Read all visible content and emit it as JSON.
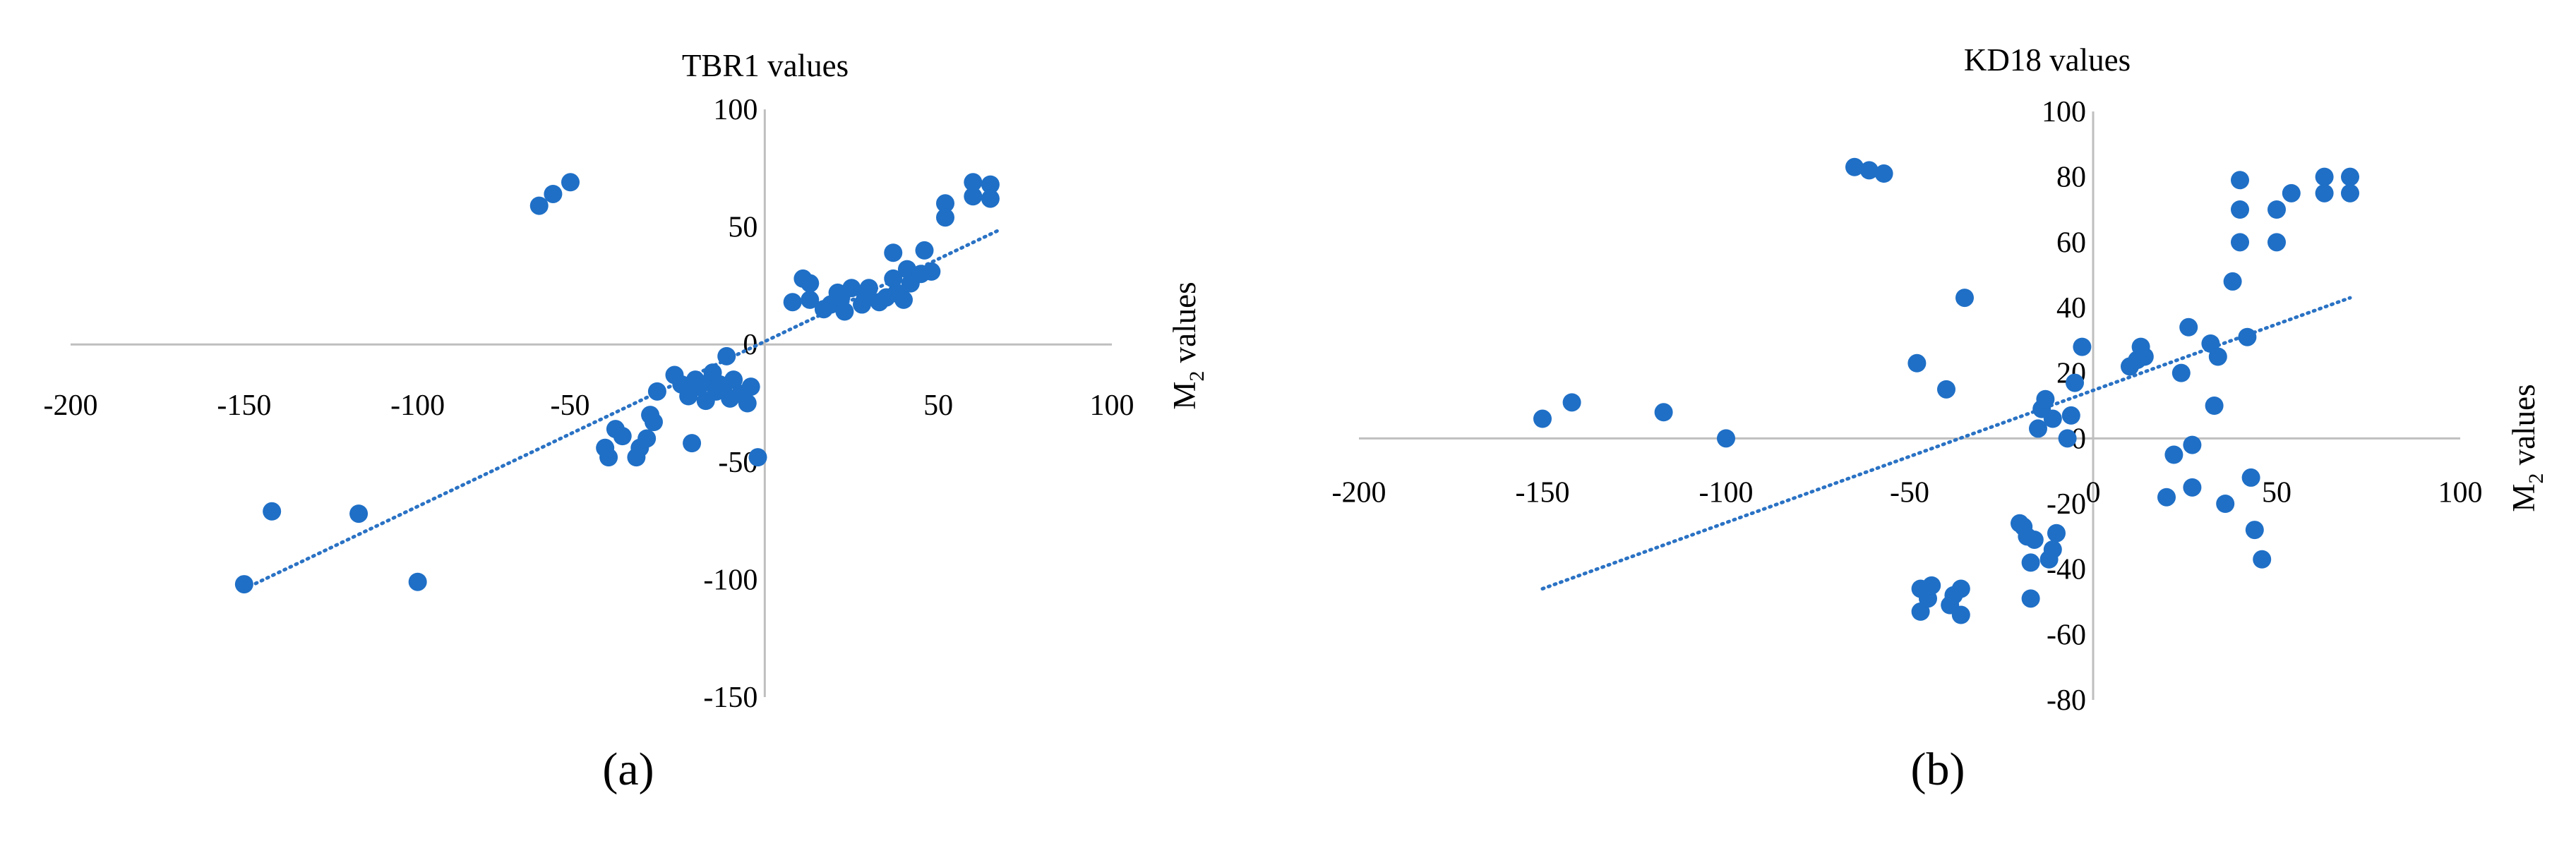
{
  "figure": {
    "panel_labels": [
      "(a)",
      "(b)"
    ],
    "colors": {
      "marker": "#1f6fc6",
      "axis": "#bfbfbf",
      "trendline": "#2a72c4"
    }
  },
  "chart_data": [
    {
      "type": "scatter",
      "title": "TBR1 values",
      "xlabel": "",
      "ylabel": "M2 values",
      "ylabel_main": "M",
      "ylabel_sub": "2",
      "ylabel_rest": " values",
      "xlim": [
        -200,
        100
      ],
      "ylim": [
        -150,
        100
      ],
      "xticks": [
        -200,
        -150,
        -100,
        50,
        100
      ],
      "xtick_labels": [
        "-200",
        "-150",
        "-100",
        "50",
        "100"
      ],
      "xtick_inline": [
        {
          "x": -50,
          "label": "-50"
        }
      ],
      "yticks": [
        -150,
        -100,
        -50,
        0,
        50,
        100
      ],
      "ytick_labels": [
        "-150",
        "-100",
        "-50",
        "0",
        "50",
        "100"
      ],
      "grid": false,
      "legend": "none",
      "trendline": {
        "style": "dotted linear",
        "x": [
          -150,
          68
        ],
        "y": [
          -104,
          49
        ]
      },
      "points": [
        [
          -150,
          -102
        ],
        [
          -142,
          -71
        ],
        [
          -117,
          -72
        ],
        [
          -100,
          -101
        ],
        [
          -65,
          59
        ],
        [
          -61,
          64
        ],
        [
          -56,
          69
        ],
        [
          -46,
          -44
        ],
        [
          -45,
          -48
        ],
        [
          -43,
          -36
        ],
        [
          -41,
          -39
        ],
        [
          -37,
          -48
        ],
        [
          -36,
          -44
        ],
        [
          -34,
          -40
        ],
        [
          -33,
          -30
        ],
        [
          -32,
          -33
        ],
        [
          -31,
          -20
        ],
        [
          -26,
          -13
        ],
        [
          -24,
          -17
        ],
        [
          -22,
          -22
        ],
        [
          -21,
          -42
        ],
        [
          -20,
          -15
        ],
        [
          -19,
          -18
        ],
        [
          -17,
          -24
        ],
        [
          -16,
          -16
        ],
        [
          -15,
          -12
        ],
        [
          -14,
          -20
        ],
        [
          -13,
          -17
        ],
        [
          -12,
          -19
        ],
        [
          -11,
          -5
        ],
        [
          -10,
          -23
        ],
        [
          -9,
          -15
        ],
        [
          -7,
          -21
        ],
        [
          -5,
          -25
        ],
        [
          -4,
          -18
        ],
        [
          -2,
          -48
        ],
        [
          8,
          18
        ],
        [
          11,
          28
        ],
        [
          13,
          26
        ],
        [
          13,
          19
        ],
        [
          17,
          15
        ],
        [
          19,
          17
        ],
        [
          21,
          22
        ],
        [
          22,
          20
        ],
        [
          23,
          14
        ],
        [
          25,
          24
        ],
        [
          28,
          17
        ],
        [
          29,
          20
        ],
        [
          30,
          24
        ],
        [
          33,
          18
        ],
        [
          35,
          20
        ],
        [
          37,
          39
        ],
        [
          37,
          28
        ],
        [
          38,
          22
        ],
        [
          39,
          21
        ],
        [
          40,
          19
        ],
        [
          41,
          32
        ],
        [
          42,
          26
        ],
        [
          45,
          30
        ],
        [
          46,
          40
        ],
        [
          48,
          31
        ],
        [
          52,
          60
        ],
        [
          52,
          54
        ],
        [
          60,
          69
        ],
        [
          60,
          63
        ],
        [
          65,
          68
        ],
        [
          65,
          62
        ]
      ]
    },
    {
      "type": "scatter",
      "title": "KD18 values",
      "xlabel": "",
      "ylabel": "M2 values",
      "ylabel_main": "M",
      "ylabel_sub": "2",
      "ylabel_rest": " values",
      "xlim": [
        -200,
        100
      ],
      "ylim": [
        -80,
        100
      ],
      "xticks": [
        -200,
        -150,
        -100,
        -50,
        50,
        100
      ],
      "xtick_labels": [
        "-200",
        "-150",
        "-100",
        "-50",
        "50",
        "100"
      ],
      "xtick_inline": [
        {
          "x": 0,
          "label": "0"
        }
      ],
      "yticks": [
        -80,
        -60,
        -40,
        -20,
        0,
        20,
        40,
        60,
        80,
        100
      ],
      "ytick_labels": [
        "-80",
        "-60",
        "-40",
        "-20",
        "0",
        "20",
        "40",
        "60",
        "80",
        "100"
      ],
      "grid": false,
      "legend": "none",
      "trendline": {
        "style": "dotted linear",
        "x": [
          -150,
          70
        ],
        "y": [
          -46,
          43
        ]
      },
      "points": [
        [
          -150,
          6
        ],
        [
          -142,
          11
        ],
        [
          -117,
          8
        ],
        [
          -100,
          0
        ],
        [
          -65,
          83
        ],
        [
          -61,
          82
        ],
        [
          -57,
          81
        ],
        [
          -48,
          23
        ],
        [
          -47,
          -46
        ],
        [
          -47,
          -53
        ],
        [
          -45,
          -49
        ],
        [
          -44,
          -45
        ],
        [
          -40,
          15
        ],
        [
          -39,
          -51
        ],
        [
          -38,
          -48
        ],
        [
          -36,
          -46
        ],
        [
          -36,
          -54
        ],
        [
          -35,
          43
        ],
        [
          -20,
          -26
        ],
        [
          -19,
          -27
        ],
        [
          -18,
          -30
        ],
        [
          -17,
          -38
        ],
        [
          -17,
          -49
        ],
        [
          -16,
          -31
        ],
        [
          -15,
          3
        ],
        [
          -14,
          9
        ],
        [
          -13,
          12
        ],
        [
          -12,
          -37
        ],
        [
          -11,
          6
        ],
        [
          -11,
          -34
        ],
        [
          -10,
          -29
        ],
        [
          -7,
          0
        ],
        [
          -6,
          7
        ],
        [
          -5,
          17
        ],
        [
          -3,
          28
        ],
        [
          10,
          22
        ],
        [
          12,
          24
        ],
        [
          13,
          28
        ],
        [
          14,
          25
        ],
        [
          20,
          -18
        ],
        [
          22,
          -5
        ],
        [
          24,
          20
        ],
        [
          26,
          34
        ],
        [
          27,
          -15
        ],
        [
          27,
          -2
        ],
        [
          32,
          29
        ],
        [
          33,
          10
        ],
        [
          34,
          25
        ],
        [
          36,
          -20
        ],
        [
          38,
          48
        ],
        [
          40,
          79
        ],
        [
          40,
          70
        ],
        [
          40,
          60
        ],
        [
          42,
          31
        ],
        [
          43,
          -12
        ],
        [
          44,
          -28
        ],
        [
          46,
          -37
        ],
        [
          50,
          70
        ],
        [
          50,
          60
        ],
        [
          54,
          75
        ],
        [
          63,
          80
        ],
        [
          63,
          75
        ],
        [
          70,
          80
        ],
        [
          70,
          75
        ]
      ]
    }
  ]
}
